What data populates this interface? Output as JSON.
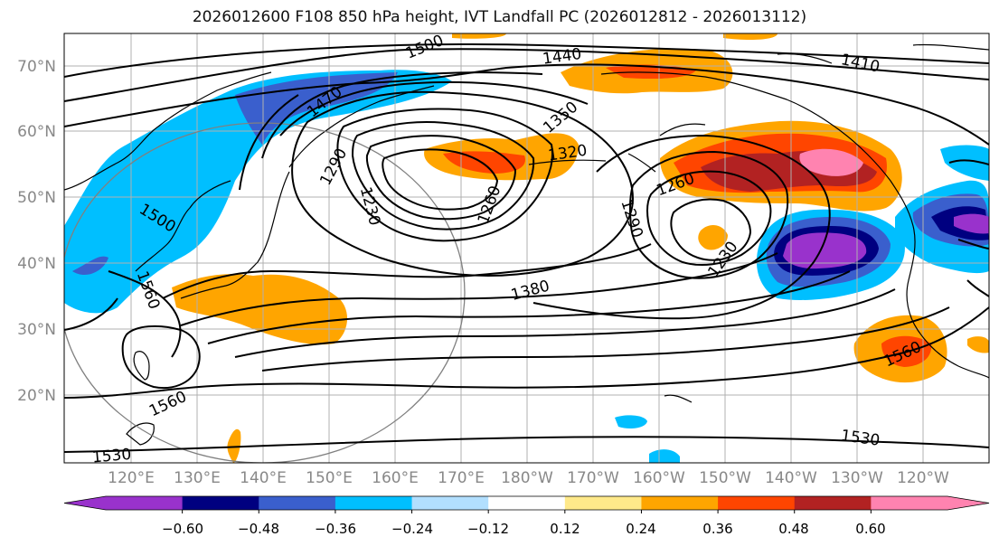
{
  "title": "2026012600 F108 850 hPa height, IVT Landfall PC (2026012812 - 2026013112)",
  "lat_labels": [
    "70°N",
    "60°N",
    "50°N",
    "40°N",
    "30°N",
    "20°N"
  ],
  "lon_labels": [
    "120°E",
    "130°E",
    "140°E",
    "150°E",
    "160°E",
    "170°E",
    "180°W",
    "170°W",
    "160°W",
    "150°W",
    "140°W",
    "130°W",
    "120°W"
  ],
  "contour_labels": [
    "1500",
    "1440",
    "1410",
    "1470",
    "1350",
    "1290",
    "1320",
    "1230",
    "1260",
    "1260",
    "1290",
    "1230",
    "1500",
    "1560",
    "1380",
    "1560",
    "1560",
    "1530",
    "1530"
  ],
  "colorbar": {
    "ticks": [
      "−0.60",
      "−0.48",
      "−0.36",
      "−0.24",
      "−0.12",
      "0.12",
      "0.24",
      "0.36",
      "0.48",
      "0.60"
    ],
    "colors": [
      "#9932cc",
      "#000080",
      "#3a5fcd",
      "#00bfff",
      "#b2dfff",
      "#ffffff",
      "#ffe98a",
      "#ffa500",
      "#ff4500",
      "#b22222",
      "#ff83b0"
    ]
  },
  "colors": {
    "strong_neg": "#9932cc",
    "neg_navy": "#000080",
    "neg_blue": "#3a5fcd",
    "neg_cyan": "#00bfff",
    "pos_orange": "#ffa500",
    "pos_red": "#ff4500",
    "pos_dark": "#b22222",
    "pos_pink": "#ff83b0"
  }
}
